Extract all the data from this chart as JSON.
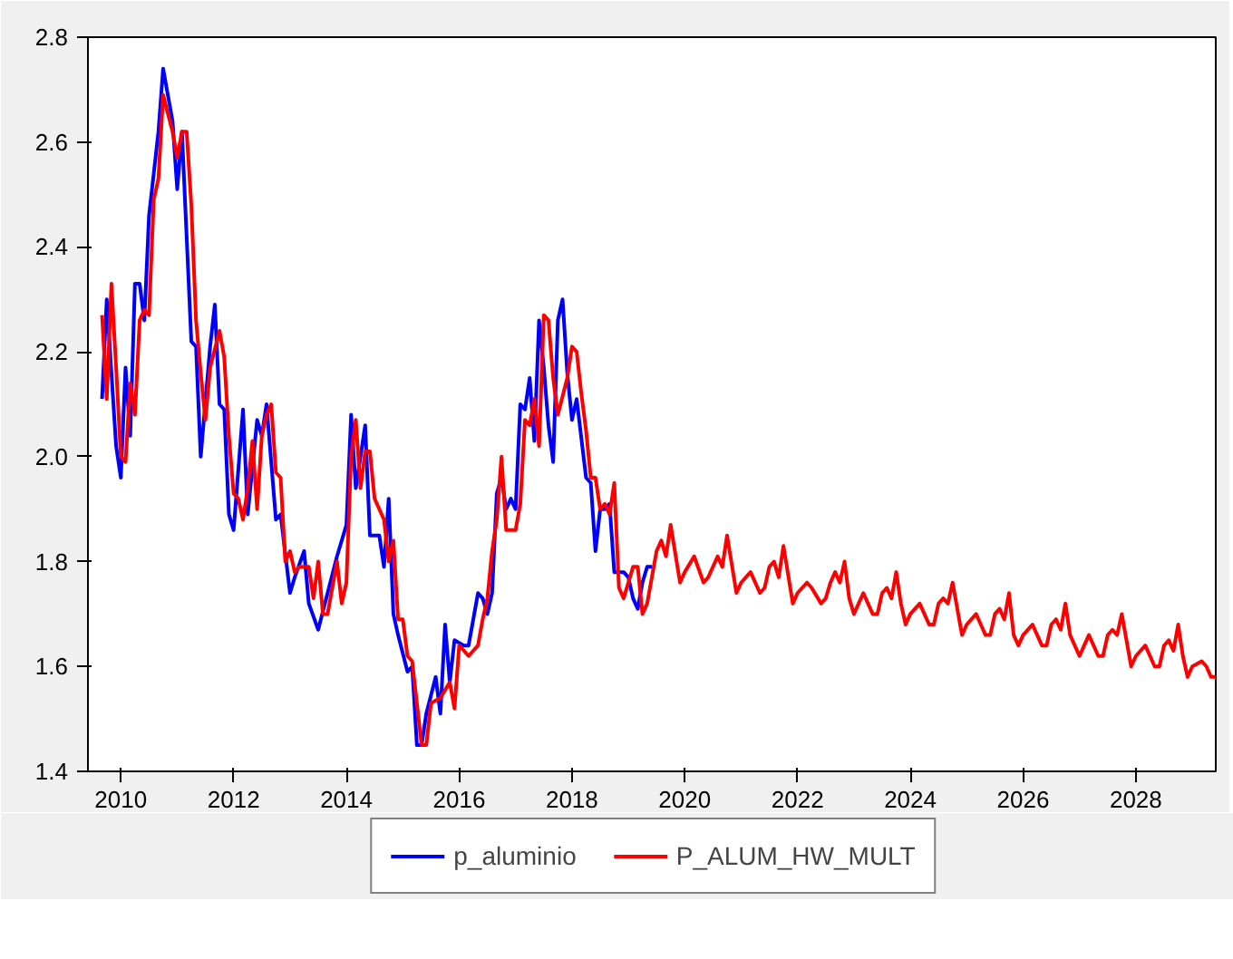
{
  "chart_data": {
    "type": "line",
    "xlim": [
      "2009-12",
      "2029-12"
    ],
    "xticks": [
      {
        "value": "2010-07",
        "label": "2010"
      },
      {
        "value": "2012-07",
        "label": "2012"
      },
      {
        "value": "2014-07",
        "label": "2014"
      },
      {
        "value": "2016-07",
        "label": "2016"
      },
      {
        "value": "2018-07",
        "label": "2018"
      },
      {
        "value": "2020-07",
        "label": "2020"
      },
      {
        "value": "2022-07",
        "label": "2022"
      },
      {
        "value": "2024-07",
        "label": "2024"
      },
      {
        "value": "2026-07",
        "label": "2026"
      },
      {
        "value": "2028-07",
        "label": "2028"
      }
    ],
    "ylim": [
      1.4,
      2.8
    ],
    "yticks": [
      1.4,
      1.6,
      1.8,
      {
        "value": 2,
        "label": "2.0"
      },
      2.2,
      2.4,
      2.6,
      2.8
    ],
    "grid": false,
    "legend": "bottom",
    "line_style": "solid",
    "marker": "none",
    "series": [
      {
        "name": "p_aluminio",
        "color": "#0000ff",
        "x": [
          "2010-03",
          "2010-04",
          "2010-06",
          "2010-07",
          "2010-08",
          "2010-09",
          "2010-10",
          "2010-11",
          "2010-12",
          "2011-01",
          "2011-02",
          "2011-03",
          "2011-04",
          "2011-06",
          "2011-07",
          "2011-08",
          "2011-09",
          "2011-10",
          "2011-11",
          "2011-12",
          "2012-02",
          "2012-03",
          "2012-04",
          "2012-05",
          "2012-06",
          "2012-07",
          "2012-09",
          "2012-10",
          "2012-12",
          "2013-01",
          "2013-02",
          "2013-04",
          "2013-05",
          "2013-07",
          "2013-08",
          "2013-10",
          "2013-11",
          "2014-01",
          "2014-03",
          "2014-05",
          "2014-07",
          "2014-08",
          "2014-09",
          "2014-11",
          "2014-12",
          "2015-02",
          "2015-03",
          "2015-04",
          "2015-05",
          "2015-06",
          "2015-08",
          "2015-09",
          "2015-10",
          "2015-11",
          "2015-12",
          "2016-02",
          "2016-03",
          "2016-04",
          "2016-05",
          "2016-06",
          "2016-08",
          "2016-09",
          "2016-11",
          "2016-12",
          "2017-01",
          "2017-02",
          "2017-03",
          "2017-04",
          "2017-05",
          "2017-06",
          "2017-07",
          "2017-08",
          "2017-09",
          "2017-10",
          "2017-11",
          "2017-12",
          "2018-01",
          "2018-02",
          "2018-03",
          "2018-04",
          "2018-05",
          "2018-06",
          "2018-07",
          "2018-08",
          "2018-10",
          "2018-11",
          "2018-12",
          "2019-01",
          "2019-02",
          "2019-03",
          "2019-04",
          "2019-06",
          "2019-07",
          "2019-08",
          "2019-09",
          "2019-10",
          "2019-11",
          "2019-12"
        ],
        "values": [
          2.11,
          2.3,
          2.02,
          1.96,
          2.17,
          2.04,
          2.33,
          2.33,
          2.26,
          2.46,
          2.54,
          2.62,
          2.74,
          2.64,
          2.51,
          2.62,
          2.42,
          2.22,
          2.21,
          2.0,
          2.21,
          2.29,
          2.1,
          2.09,
          1.89,
          1.86,
          2.09,
          1.89,
          2.07,
          2.04,
          2.1,
          1.88,
          1.89,
          1.74,
          1.77,
          1.82,
          1.72,
          1.67,
          1.74,
          1.81,
          1.87,
          2.08,
          1.94,
          2.06,
          1.85,
          1.85,
          1.79,
          1.92,
          1.7,
          1.66,
          1.59,
          1.6,
          1.45,
          1.45,
          1.51,
          1.58,
          1.51,
          1.68,
          1.57,
          1.65,
          1.64,
          1.64,
          1.74,
          1.73,
          1.7,
          1.74,
          1.93,
          1.96,
          1.9,
          1.92,
          1.9,
          2.1,
          2.09,
          2.15,
          2.03,
          2.26,
          2.17,
          2.06,
          1.99,
          2.26,
          2.3,
          2.16,
          2.07,
          2.11,
          1.96,
          1.95,
          1.82,
          1.9,
          1.9,
          1.91,
          1.78,
          1.78,
          1.77,
          1.73,
          1.71,
          1.76,
          1.79,
          1.79
        ]
      },
      {
        "name": "P_ALUM_HW_MULT",
        "color": "#ff0000",
        "x": [
          "2010-03",
          "2010-04",
          "2010-05",
          "2010-06",
          "2010-07",
          "2010-08",
          "2010-09",
          "2010-10",
          "2010-11",
          "2010-12",
          "2011-01",
          "2011-02",
          "2011-03",
          "2011-04",
          "2011-06",
          "2011-07",
          "2011-08",
          "2011-09",
          "2011-10",
          "2011-11",
          "2011-12",
          "2012-01",
          "2012-02",
          "2012-04",
          "2012-05",
          "2012-06",
          "2012-07",
          "2012-08",
          "2012-09",
          "2012-10",
          "2012-11",
          "2012-12",
          "2013-01",
          "2013-02",
          "2013-03",
          "2013-04",
          "2013-05",
          "2013-06",
          "2013-07",
          "2013-08",
          "2013-09",
          "2013-11",
          "2013-12",
          "2014-01",
          "2014-02",
          "2014-03",
          "2014-05",
          "2014-06",
          "2014-07",
          "2014-08",
          "2014-09",
          "2014-10",
          "2014-11",
          "2014-12",
          "2015-01",
          "2015-03",
          "2015-04",
          "2015-05",
          "2015-06",
          "2015-07",
          "2015-08",
          "2015-09",
          "2015-10",
          "2015-11",
          "2015-12",
          "2016-01",
          "2016-03",
          "2016-05",
          "2016-06",
          "2016-07",
          "2016-09",
          "2016-11",
          "2016-12",
          "2017-01",
          "2017-02",
          "2017-03",
          "2017-04",
          "2017-05",
          "2017-07",
          "2017-08",
          "2017-09",
          "2017-10",
          "2017-11",
          "2017-12",
          "2018-01",
          "2018-02",
          "2018-03",
          "2018-04",
          "2018-06",
          "2018-07",
          "2018-08",
          "2018-09",
          "2018-10",
          "2018-11",
          "2018-12",
          "2019-01",
          "2019-02",
          "2019-03",
          "2019-04",
          "2019-05",
          "2019-06",
          "2019-08",
          "2019-09",
          "2019-10",
          "2019-11",
          "2020-01",
          "2020-02",
          "2020-03",
          "2020-04",
          "2020-06",
          "2020-07",
          "2020-09",
          "2020-11",
          "2020-12",
          "2021-02",
          "2021-03",
          "2021-04",
          "2021-06",
          "2021-07",
          "2021-09",
          "2021-11",
          "2021-12",
          "2022-01",
          "2022-02",
          "2022-03",
          "2022-04",
          "2022-06",
          "2022-07",
          "2022-09",
          "2022-10",
          "2022-12",
          "2023-01",
          "2023-02",
          "2023-03",
          "2023-04",
          "2023-05",
          "2023-06",
          "2023-07",
          "2023-08",
          "2023-09",
          "2023-10",
          "2023-11",
          "2023-12",
          "2024-01",
          "2024-02",
          "2024-03",
          "2024-04",
          "2024-05",
          "2024-06",
          "2024-07",
          "2024-09",
          "2024-10",
          "2024-11",
          "2024-12",
          "2025-01",
          "2025-02",
          "2025-03",
          "2025-04",
          "2025-05",
          "2025-06",
          "2025-07",
          "2025-09",
          "2025-10",
          "2025-11",
          "2025-12",
          "2026-01",
          "2026-02",
          "2026-03",
          "2026-04",
          "2026-05",
          "2026-06",
          "2026-07",
          "2026-09",
          "2026-10",
          "2026-11",
          "2026-12",
          "2027-01",
          "2027-02",
          "2027-03",
          "2027-04",
          "2027-05",
          "2027-07",
          "2027-08",
          "2027-09",
          "2027-10",
          "2027-11",
          "2027-12",
          "2028-01",
          "2028-02",
          "2028-03",
          "2028-04",
          "2028-05",
          "2028-06",
          "2028-07",
          "2028-09",
          "2028-11",
          "2028-12",
          "2029-01",
          "2029-02",
          "2029-03",
          "2029-04",
          "2029-05",
          "2029-06",
          "2029-07",
          "2029-09",
          "2029-10",
          "2029-11",
          "2029-12"
        ],
        "values": [
          2.27,
          2.11,
          2.33,
          2.17,
          2.0,
          1.99,
          2.14,
          2.08,
          2.26,
          2.28,
          2.27,
          2.49,
          2.53,
          2.69,
          2.62,
          2.57,
          2.62,
          2.62,
          2.48,
          2.26,
          2.16,
          2.07,
          2.17,
          2.24,
          2.19,
          2.04,
          1.93,
          1.92,
          1.88,
          1.94,
          2.03,
          1.9,
          2.04,
          2.08,
          2.1,
          1.97,
          1.96,
          1.8,
          1.82,
          1.78,
          1.79,
          1.79,
          1.73,
          1.8,
          1.7,
          1.7,
          1.8,
          1.72,
          1.76,
          2.0,
          2.07,
          1.94,
          2.01,
          2.01,
          1.92,
          1.88,
          1.8,
          1.84,
          1.69,
          1.69,
          1.62,
          1.61,
          1.53,
          1.45,
          1.45,
          1.53,
          1.54,
          1.57,
          1.52,
          1.64,
          1.62,
          1.64,
          1.69,
          1.73,
          1.82,
          1.88,
          2.0,
          1.86,
          1.86,
          1.91,
          2.07,
          2.06,
          2.11,
          2.02,
          2.27,
          2.26,
          2.15,
          2.08,
          2.15,
          2.21,
          2.2,
          2.12,
          2.05,
          1.96,
          1.96,
          1.9,
          1.91,
          1.89,
          1.95,
          1.75,
          1.73,
          1.79,
          1.79,
          1.7,
          1.72,
          1.82,
          1.84,
          1.81,
          1.87,
          1.76,
          1.78,
          1.81,
          1.76,
          1.77,
          1.81,
          1.79,
          1.85,
          1.74,
          1.76,
          1.78,
          1.74,
          1.75,
          1.79,
          1.8,
          1.77,
          1.83,
          1.72,
          1.74,
          1.76,
          1.75,
          1.72,
          1.73,
          1.76,
          1.78,
          1.76,
          1.8,
          1.73,
          1.7,
          1.72,
          1.74,
          1.72,
          1.7,
          1.7,
          1.74,
          1.75,
          1.73,
          1.78,
          1.72,
          1.68,
          1.7,
          1.72,
          1.7,
          1.68,
          1.68,
          1.72,
          1.73,
          1.72,
          1.76,
          1.71,
          1.66,
          1.68,
          1.7,
          1.68,
          1.66,
          1.66,
          1.7,
          1.71,
          1.69,
          1.74,
          1.66,
          1.64,
          1.66,
          1.68,
          1.66,
          1.64,
          1.64,
          1.68,
          1.69,
          1.67,
          1.72,
          1.66,
          1.62,
          1.64,
          1.66,
          1.64,
          1.62,
          1.62,
          1.66,
          1.67,
          1.66,
          1.7,
          1.65,
          1.6,
          1.62,
          1.64,
          1.6,
          1.6,
          1.64,
          1.65,
          1.63,
          1.68,
          1.62,
          1.58,
          1.6,
          1.61,
          1.6,
          1.58,
          1.58
        ]
      }
    ]
  }
}
